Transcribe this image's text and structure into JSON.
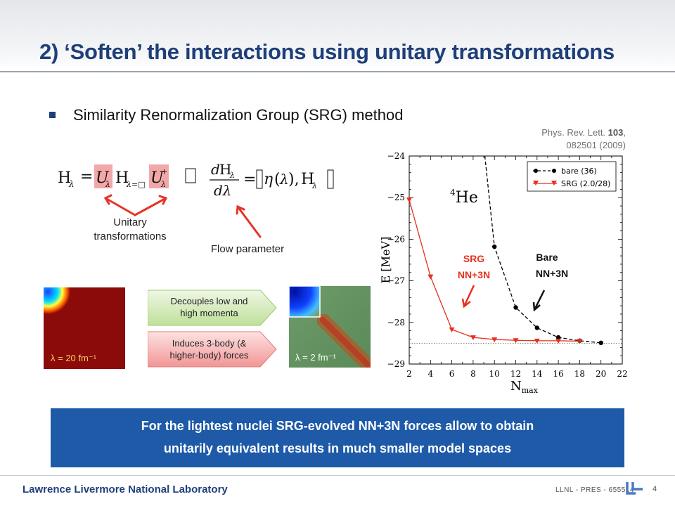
{
  "slide": {
    "title": "2) ‘Soften’ the interactions using unitary transformations",
    "bullet": "Similarity Renormalization Group (SRG) method",
    "citation": {
      "journal": "Phys. Rev. Lett.",
      "volume": "103",
      "article": "082501 (2009)"
    },
    "labels": {
      "unitary_line1": "Unitary",
      "unitary_line2": "transformations",
      "flow_parameter": "Flow parameter"
    },
    "heatmaps": {
      "left_label": "λ = 20 fm⁻¹",
      "right_label": "λ = 2 fm⁻¹"
    },
    "arrows": {
      "decouples_line1": "Decouples low and",
      "decouples_line2": "high momenta",
      "induces_line1": "Induces 3-body (&",
      "induces_line2": "higher-body) forces"
    },
    "callout": {
      "line1": "For the lightest nuclei SRG-evolved NN+3N forces allow to obtain",
      "line2": "unitarily equivalent results in much smaller model spaces"
    },
    "footer": {
      "lab": "Lawrence Livermore National Laboratory",
      "code": "LLNL - PRES - 655514",
      "page": "4"
    },
    "colors": {
      "title": "#1f3f7a",
      "callout_bg": "#1e5aa8",
      "srg": "#e8301e",
      "bare": "#000000"
    }
  },
  "chart_data": {
    "type": "line",
    "ylabel": "E [MeV]",
    "xlabel": "N_max",
    "annotation_nucleus": "4He",
    "xlim": [
      2,
      22
    ],
    "ylim": [
      -29,
      -24
    ],
    "x_ticks": [
      "2",
      "4",
      "6",
      "8",
      "10",
      "12",
      "14",
      "16",
      "18",
      "20",
      "22"
    ],
    "y_ticks": [
      "-29",
      "-28",
      "-27",
      "-26",
      "-25",
      "-24"
    ],
    "series": [
      {
        "name": "bare (36)",
        "color": "#000000",
        "marker": "circle",
        "dashed": true,
        "x": [
          10,
          12,
          14,
          16,
          18,
          20
        ],
        "y": [
          -26.18,
          -27.64,
          -28.13,
          -28.36,
          -28.44,
          -28.49
        ]
      },
      {
        "name": "SRG (2.0/28)",
        "color": "#e8301e",
        "marker": "triangle",
        "dashed": false,
        "x": [
          2,
          4,
          6,
          8,
          10,
          12,
          14,
          16,
          18
        ],
        "y": [
          -25.05,
          -26.9,
          -28.17,
          -28.36,
          -28.41,
          -28.43,
          -28.44,
          -28.44,
          -28.45
        ]
      }
    ],
    "reference_line": -28.5,
    "series_callouts": {
      "srg_line1": "SRG",
      "srg_line2": "NN+3N",
      "bare_line1": "Bare",
      "bare_line2": "NN+3N"
    },
    "legend_position": "top-right",
    "grid": false
  }
}
